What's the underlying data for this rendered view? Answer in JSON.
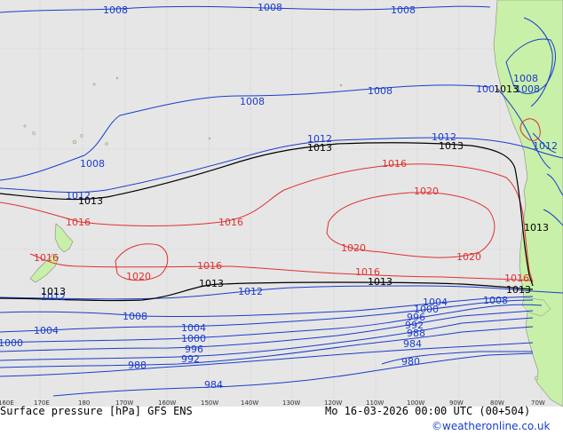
{
  "colors": {
    "ocean": "#e6e6e6",
    "land": "#c8f0a8",
    "blue": "#1a3ccc",
    "red": "#e03030",
    "black": "#000000",
    "grid": "#b8b8b8",
    "credit": "#1a3ccc"
  },
  "footer": {
    "title": "Surface pressure [hPa] GFS ENS",
    "valid": "Mo 16-03-2026 00:00 UTC (00+504)",
    "credit": "©weatheronline.co.uk"
  },
  "axis": {
    "lon_labels": [
      "160E",
      "170E",
      "180",
      "170W",
      "160W",
      "150W",
      "140W",
      "130W",
      "120W",
      "110W",
      "100W",
      "90W",
      "80W",
      "70W"
    ]
  },
  "isobar_labels": {
    "blue_top_1": "1008",
    "blue_top_2": "1008",
    "blue_top_3": "1008",
    "blue_mid_1": "1008",
    "blue_mid_2": "1008",
    "blue_mid_3": "1008",
    "blue_chile_1": "1008",
    "blue_west_1012": "1012",
    "blue_mid_1012": "1012",
    "blue_chile_1012": "1012",
    "blue_south_1012": "1012",
    "blue_south_1012b": "1012",
    "blue_south_1012c": "1012",
    "blue_south_1008a": "1008",
    "blue_south_1008b": "1008",
    "blue_1004a": "1004",
    "blue_1004b": "1004",
    "blue_1004c": "1004",
    "blue_1000a": "1000",
    "blue_1000b": "1000",
    "blue_1000c": "1000",
    "blue_996a": "996",
    "blue_996b": "996",
    "blue_992a": "992",
    "blue_992b": "992",
    "blue_988a": "988",
    "blue_988b": "988",
    "blue_984a": "984",
    "blue_984b": "984",
    "blue_980": "980",
    "blue_ne_1008": "1008",
    "blue_ne_100": "100",
    "black_n_1": "1013",
    "black_n_2": "1013",
    "black_n_3": "1013",
    "black_n_4": "1013",
    "black_chile": "1013",
    "black_s_1": "1013",
    "black_s_2": "1013",
    "black_s_3": "1013",
    "black_s_4": "1013",
    "red_1016a": "1016",
    "red_1016b": "1016",
    "red_1016c": "1016",
    "red_1016d": "1016",
    "red_1016e": "1016",
    "red_1016f": "1016",
    "red_1016g": "1016",
    "red_1020a": "1020",
    "red_1020b": "1020",
    "red_1020c": "1020",
    "red_1020d": "1020"
  }
}
